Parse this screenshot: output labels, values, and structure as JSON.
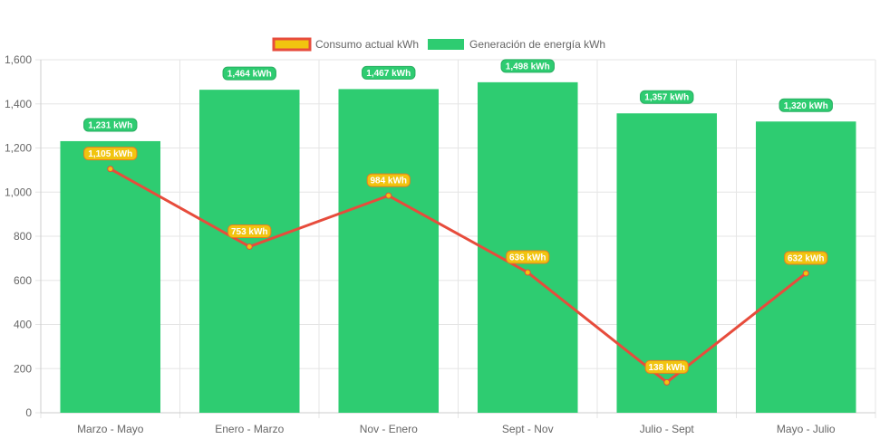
{
  "chart_data": {
    "type": "bar",
    "categories": [
      "Marzo - Mayo",
      "Enero - Marzo",
      "Nov - Enero",
      "Sept - Nov",
      "Julio - Sept",
      "Mayo - Julio"
    ],
    "series": [
      {
        "name": "Consumo actual kWh",
        "type": "line",
        "values": [
          1105,
          753,
          984,
          636,
          138,
          632
        ],
        "labels": [
          "1,105 kWh",
          "753 kWh",
          "984 kWh",
          "636 kWh",
          "138 kWh",
          "632 kWh"
        ],
        "color": "#e74c3c",
        "label_color": "#f1c40f"
      },
      {
        "name": "Generación de energía kWh",
        "type": "bar",
        "values": [
          1231,
          1464,
          1467,
          1498,
          1357,
          1320
        ],
        "labels": [
          "1,231 kWh",
          "1,464 kWh",
          "1,467 kWh",
          "1,498 kWh",
          "1,357 kWh",
          "1,320 kWh"
        ],
        "color": "#2ecc71"
      }
    ],
    "ylim": [
      0,
      1600
    ],
    "yticks": [
      0,
      200,
      400,
      600,
      800,
      1000,
      1200,
      1400,
      1600
    ],
    "ytick_labels": [
      "0",
      "200",
      "400",
      "600",
      "800",
      "1,000",
      "1,200",
      "1,400",
      "1,600"
    ],
    "grid": true,
    "legend_position": "top-center"
  }
}
